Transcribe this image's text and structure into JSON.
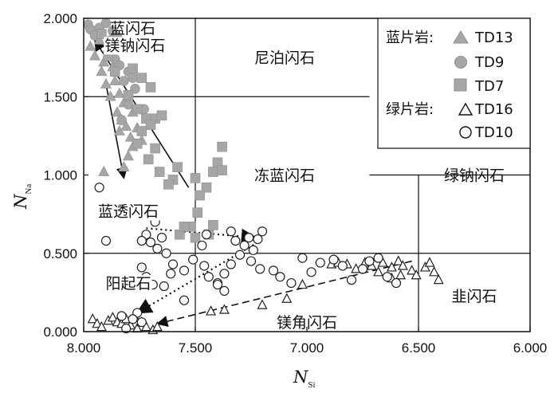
{
  "chart_data": {
    "type": "scatter",
    "xlabel_main": "N",
    "xlabel_sub": "Si",
    "ylabel_main": "N",
    "ylabel_sub": "Na",
    "xlim": [
      8.0,
      6.0
    ],
    "ylim": [
      0.0,
      2.0
    ],
    "x_reversed": true,
    "grid": false,
    "x_ticks": [
      8.0,
      7.5,
      7.0,
      6.5,
      6.0
    ],
    "x_tick_labels": [
      "8.000",
      "7.500",
      "7.000",
      "6.500",
      "6.000"
    ],
    "y_ticks": [
      0.0,
      0.5,
      1.0,
      1.5,
      2.0
    ],
    "y_tick_labels": [
      "0.000",
      "0.500",
      "1.000",
      "1.500",
      "2.000"
    ],
    "field_boundaries": [
      {
        "type": "vertical",
        "x": 7.5,
        "y_from": 0.0,
        "y_to": 2.0
      },
      {
        "type": "vertical",
        "x": 6.5,
        "y_from": 0.0,
        "y_to": 1.0
      },
      {
        "type": "horizontal",
        "y": 1.5,
        "x_from": 8.0,
        "x_to": 7.5
      },
      {
        "type": "horizontal",
        "y": 1.5,
        "x_from": 7.5,
        "x_to": 6.72
      },
      {
        "type": "horizontal",
        "y": 1.0,
        "x_from": 6.72,
        "x_to": 6.0
      },
      {
        "type": "horizontal",
        "y": 0.5,
        "x_from": 8.0,
        "x_to": 6.0
      }
    ],
    "fields": [
      {
        "label": "蓝闪石",
        "x": 7.78,
        "y": 1.94
      },
      {
        "label": "镁钠闪石",
        "x": 7.77,
        "y": 1.83
      },
      {
        "label": "尼泊闪石",
        "x": 7.1,
        "y": 1.75
      },
      {
        "label": "冻蓝闪石",
        "x": 7.1,
        "y": 1.0
      },
      {
        "label": "绿钠闪石",
        "x": 6.25,
        "y": 1.0
      },
      {
        "label": "蓝透闪石",
        "x": 7.8,
        "y": 0.77
      },
      {
        "label": "阳起石",
        "x": 7.8,
        "y": 0.31
      },
      {
        "label": "镁角闪石",
        "x": 7.0,
        "y": 0.06
      },
      {
        "label": "韭闪石",
        "x": 6.25,
        "y": 0.23
      }
    ],
    "legend": {
      "placement": "top-right",
      "groups": [
        {
          "title": "蓝片岩:",
          "entries": [
            {
              "name": "TD13",
              "marker": "filled-triangle"
            },
            {
              "name": "TD9",
              "marker": "filled-circle"
            },
            {
              "name": "TD7",
              "marker": "filled-square"
            }
          ]
        },
        {
          "title": "绿片岩:",
          "entries": [
            {
              "name": "TD16",
              "marker": "open-triangle"
            },
            {
              "name": "TD10",
              "marker": "open-circle"
            }
          ]
        }
      ]
    },
    "colors": {
      "filled": "#a6a6a6",
      "open_stroke": "#222222",
      "frame": "#111111"
    },
    "series": [
      {
        "name": "TD13",
        "marker": "filled-triangle",
        "points": [
          [
            7.97,
            1.82
          ],
          [
            7.95,
            1.76
          ],
          [
            7.93,
            1.86
          ],
          [
            7.91,
            1.72
          ],
          [
            7.92,
            1.66
          ],
          [
            7.88,
            1.8
          ],
          [
            7.87,
            1.69
          ],
          [
            7.9,
            1.58
          ],
          [
            7.86,
            1.6
          ],
          [
            7.84,
            1.52
          ],
          [
            7.82,
            1.46
          ],
          [
            7.85,
            1.4
          ],
          [
            7.83,
            1.35
          ],
          [
            7.81,
            1.31
          ],
          [
            7.79,
            1.24
          ],
          [
            7.78,
            1.18
          ],
          [
            7.8,
            1.12
          ],
          [
            7.82,
            1.05
          ],
          [
            7.78,
            1.4
          ],
          [
            7.84,
            1.28
          ],
          [
            7.88,
            1.5
          ],
          [
            7.76,
            1.3
          ],
          [
            7.74,
            1.22
          ],
          [
            7.91,
            1.02
          ]
        ]
      },
      {
        "name": "TD9",
        "marker": "filled-circle",
        "points": [
          [
            7.98,
            1.96
          ],
          [
            7.97,
            1.93
          ],
          [
            7.95,
            1.89
          ],
          [
            7.93,
            1.94
          ],
          [
            7.9,
            1.97
          ],
          [
            7.87,
            1.92
          ],
          [
            7.85,
            1.88
          ],
          [
            7.88,
            1.86
          ],
          [
            7.82,
            1.82
          ],
          [
            7.86,
            1.74
          ],
          [
            7.84,
            1.7
          ],
          [
            7.8,
            1.66
          ],
          [
            7.82,
            1.6
          ],
          [
            7.78,
            1.62
          ],
          [
            7.77,
            1.55
          ],
          [
            7.8,
            1.45
          ],
          [
            7.83,
            1.35
          ],
          [
            7.73,
            1.42
          ]
        ]
      },
      {
        "name": "TD7",
        "marker": "filled-square",
        "points": [
          [
            7.92,
            1.9
          ],
          [
            7.89,
            1.76
          ],
          [
            7.86,
            1.66
          ],
          [
            7.78,
            1.68
          ],
          [
            7.74,
            1.62
          ],
          [
            7.7,
            1.56
          ],
          [
            7.8,
            1.51
          ],
          [
            7.76,
            1.42
          ],
          [
            7.72,
            1.36
          ],
          [
            7.68,
            1.36
          ],
          [
            7.65,
            1.38
          ],
          [
            7.7,
            1.32
          ],
          [
            7.74,
            1.28
          ],
          [
            7.76,
            1.2
          ],
          [
            7.71,
            1.1
          ],
          [
            7.66,
            1.02
          ],
          [
            7.68,
            1.17
          ],
          [
            7.58,
            1.05
          ],
          [
            7.5,
            0.98
          ],
          [
            7.45,
            0.92
          ],
          [
            7.48,
            0.87
          ],
          [
            7.49,
            0.76
          ],
          [
            7.52,
            0.67
          ],
          [
            7.57,
            0.62
          ],
          [
            7.55,
            0.67
          ],
          [
            7.5,
            0.6
          ],
          [
            7.44,
            0.62
          ],
          [
            7.42,
            0.68
          ],
          [
            7.38,
            1.18
          ],
          [
            7.4,
            1.08
          ],
          [
            7.42,
            1.02
          ],
          [
            7.38,
            1.03
          ],
          [
            7.6,
            0.97
          ],
          [
            7.62,
            0.94
          ]
        ]
      },
      {
        "name": "TD16",
        "marker": "open-triangle",
        "points": [
          [
            7.96,
            0.08
          ],
          [
            7.94,
            0.05
          ],
          [
            7.92,
            0.03
          ],
          [
            7.89,
            0.07
          ],
          [
            7.87,
            0.09
          ],
          [
            7.85,
            0.06
          ],
          [
            7.83,
            0.05
          ],
          [
            7.81,
            0.08
          ],
          [
            7.79,
            0.04
          ],
          [
            7.77,
            0.09
          ],
          [
            7.76,
            0.02
          ],
          [
            7.74,
            0.06
          ],
          [
            7.72,
            0.03
          ],
          [
            7.69,
            0.01
          ],
          [
            7.67,
            0.03
          ],
          [
            7.43,
            0.13
          ],
          [
            7.37,
            0.14
          ],
          [
            7.2,
            0.17
          ],
          [
            7.09,
            0.21
          ],
          [
            7.02,
            0.3
          ],
          [
            6.89,
            0.43
          ],
          [
            6.86,
            0.44
          ],
          [
            6.82,
            0.43
          ],
          [
            6.78,
            0.4
          ],
          [
            6.74,
            0.44
          ],
          [
            6.71,
            0.42
          ],
          [
            6.68,
            0.38
          ],
          [
            6.66,
            0.44
          ],
          [
            6.62,
            0.41
          ],
          [
            6.59,
            0.45
          ],
          [
            6.57,
            0.42
          ],
          [
            6.53,
            0.39
          ],
          [
            6.51,
            0.36
          ],
          [
            6.47,
            0.41
          ],
          [
            6.45,
            0.44
          ],
          [
            6.43,
            0.38
          ],
          [
            6.41,
            0.33
          ],
          [
            6.62,
            0.34
          ],
          [
            6.58,
            0.36
          ]
        ]
      },
      {
        "name": "TD10",
        "marker": "open-circle",
        "points": [
          [
            7.65,
            0.6
          ],
          [
            7.68,
            0.7
          ],
          [
            7.72,
            0.62
          ],
          [
            7.74,
            0.58
          ],
          [
            7.7,
            0.57
          ],
          [
            7.67,
            0.53
          ],
          [
            7.63,
            0.5
          ],
          [
            7.6,
            0.43
          ],
          [
            7.74,
            0.41
          ],
          [
            7.72,
            0.35
          ],
          [
            7.69,
            0.3
          ],
          [
            7.64,
            0.29
          ],
          [
            7.61,
            0.37
          ],
          [
            7.55,
            0.39
          ],
          [
            7.51,
            0.46
          ],
          [
            7.46,
            0.42
          ],
          [
            7.44,
            0.35
          ],
          [
            7.4,
            0.31
          ],
          [
            7.37,
            0.37
          ],
          [
            7.34,
            0.43
          ],
          [
            7.3,
            0.49
          ],
          [
            7.28,
            0.55
          ],
          [
            7.26,
            0.6
          ],
          [
            7.22,
            0.59
          ],
          [
            7.2,
            0.64
          ],
          [
            7.24,
            0.52
          ],
          [
            7.21,
            0.4
          ],
          [
            7.15,
            0.39
          ],
          [
            7.12,
            0.35
          ],
          [
            7.07,
            0.31
          ],
          [
            7.02,
            0.47
          ],
          [
            6.98,
            0.38
          ],
          [
            6.94,
            0.44
          ],
          [
            6.88,
            0.46
          ],
          [
            6.84,
            0.42
          ],
          [
            6.8,
            0.33
          ],
          [
            6.75,
            0.4
          ],
          [
            6.72,
            0.45
          ],
          [
            6.68,
            0.47
          ],
          [
            6.64,
            0.35
          ],
          [
            6.6,
            0.31
          ],
          [
            7.25,
            0.45
          ],
          [
            7.47,
            0.55
          ],
          [
            7.55,
            0.2
          ],
          [
            7.76,
            0.12
          ],
          [
            7.83,
            0.1
          ],
          [
            7.78,
            0.08
          ],
          [
            7.74,
            0.06
          ],
          [
            7.81,
            0.02
          ],
          [
            7.45,
            0.62
          ],
          [
            7.34,
            0.64
          ],
          [
            7.37,
            0.26
          ],
          [
            7.9,
            0.58
          ],
          [
            7.93,
            0.92
          ],
          [
            7.4,
            0.3
          ],
          [
            7.32,
            0.58
          ]
        ]
      }
    ],
    "arrows": [
      {
        "style": "solid",
        "from": [
          7.53,
          0.92
        ],
        "to": [
          7.95,
          1.86
        ]
      },
      {
        "style": "solid",
        "from": [
          7.9,
          1.58
        ],
        "to": [
          7.82,
          0.98
        ]
      },
      {
        "style": "dotted",
        "from": [
          7.72,
          0.66
        ],
        "to": [
          7.23,
          0.6
        ]
      },
      {
        "style": "dotted",
        "from": [
          7.22,
          0.57
        ],
        "to": [
          7.76,
          0.12
        ]
      },
      {
        "style": "dashed",
        "from": [
          6.53,
          0.45
        ],
        "to": [
          7.67,
          0.05
        ]
      }
    ]
  }
}
